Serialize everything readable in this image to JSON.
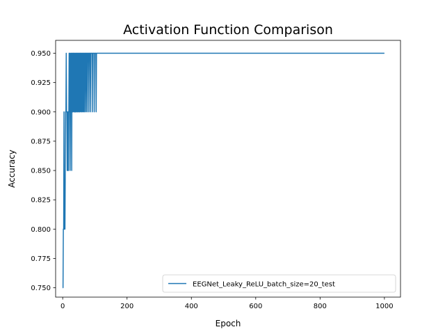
{
  "chart_data": {
    "type": "line",
    "title": "Activation Function Comparison",
    "xlabel": "Epoch",
    "ylabel": "Accuracy",
    "xlim": [
      -22,
      1050
    ],
    "ylim": [
      0.742,
      0.961
    ],
    "xticks": [
      0,
      200,
      400,
      600,
      800,
      1000
    ],
    "yticks": [
      0.75,
      0.775,
      0.8,
      0.825,
      0.85,
      0.875,
      0.9,
      0.925,
      0.95
    ],
    "grid": false,
    "legend_position": "lower right",
    "series": [
      {
        "name": "EEGNet_Leaky_ReLU_batch_size=20_test",
        "color": "#1f77b4",
        "x": [
          0,
          1,
          2,
          3,
          4,
          5,
          6,
          7,
          8,
          9,
          10,
          11,
          12,
          13,
          14,
          15,
          16,
          17,
          18,
          19,
          20,
          21,
          22,
          23,
          24,
          25,
          26,
          27,
          28,
          29,
          30,
          31,
          32,
          33,
          34,
          35,
          36,
          37,
          38,
          39,
          40,
          41,
          42,
          43,
          44,
          45,
          46,
          47,
          48,
          49,
          50,
          51,
          52,
          53,
          54,
          55,
          56,
          57,
          58,
          59,
          60,
          61,
          62,
          63,
          64,
          65,
          66,
          67,
          68,
          69,
          70,
          71,
          72,
          73,
          74,
          75,
          76,
          77,
          78,
          79,
          80,
          81,
          82,
          83,
          84,
          85,
          86,
          87,
          88,
          89,
          90,
          91,
          92,
          93,
          94,
          95,
          96,
          97,
          98,
          99,
          100,
          101,
          102,
          103,
          104,
          105,
          106,
          1000
        ],
        "y": [
          0.75,
          0.75,
          0.8,
          0.8,
          0.9,
          0.8,
          0.8,
          0.8,
          0.85,
          0.9,
          0.9,
          0.95,
          0.9,
          0.9,
          0.85,
          0.9,
          0.85,
          0.9,
          0.85,
          0.9,
          0.95,
          0.9,
          0.95,
          0.85,
          0.9,
          0.95,
          0.9,
          0.95,
          0.85,
          0.95,
          0.9,
          0.95,
          0.9,
          0.95,
          0.95,
          0.9,
          0.95,
          0.9,
          0.95,
          0.9,
          0.95,
          0.9,
          0.95,
          0.9,
          0.95,
          0.95,
          0.9,
          0.95,
          0.9,
          0.95,
          0.95,
          0.9,
          0.95,
          0.9,
          0.95,
          0.95,
          0.9,
          0.95,
          0.95,
          0.9,
          0.95,
          0.95,
          0.9,
          0.95,
          0.95,
          0.9,
          0.95,
          0.95,
          0.9,
          0.95,
          0.95,
          0.95,
          0.9,
          0.95,
          0.95,
          0.95,
          0.9,
          0.95,
          0.95,
          0.95,
          0.95,
          0.9,
          0.95,
          0.95,
          0.95,
          0.95,
          0.9,
          0.95,
          0.95,
          0.95,
          0.95,
          0.95,
          0.9,
          0.95,
          0.95,
          0.95,
          0.95,
          0.95,
          0.9,
          0.95,
          0.95,
          0.95,
          0.95,
          0.95,
          0.9,
          0.95,
          0.95,
          0.95
        ]
      }
    ]
  }
}
